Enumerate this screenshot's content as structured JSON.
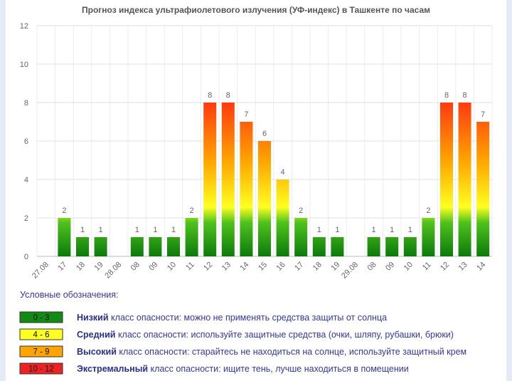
{
  "chart_data": {
    "type": "bar",
    "title": "Прогноз индекса ультрафиолетового излучения (УФ-индекс) в Ташкенте по часам",
    "categories": [
      "27.08",
      "17",
      "18",
      "19",
      "28.08",
      "08",
      "09",
      "10",
      "11",
      "12",
      "13",
      "14",
      "15",
      "16",
      "17",
      "18",
      "19",
      "29.08",
      "08",
      "09",
      "10",
      "11",
      "12",
      "13",
      "14"
    ],
    "values": [
      null,
      2,
      1,
      1,
      null,
      1,
      1,
      1,
      2,
      8,
      8,
      7,
      6,
      4,
      2,
      1,
      1,
      null,
      1,
      1,
      1,
      2,
      8,
      8,
      7
    ],
    "ylim": [
      0,
      12
    ],
    "yticks": [
      0,
      2,
      4,
      6,
      8,
      10,
      12
    ],
    "grid": true
  },
  "legend": {
    "title": "Условные обозначения:",
    "items": [
      {
        "range": "0 - 3",
        "color": "#138a13",
        "level": "Низкий",
        "text": "класс опасности: можно не применять средства защиты от солнца"
      },
      {
        "range": "4 - 6",
        "color": "#ffff22",
        "level": "Средний",
        "text": "класс опасности: используйте защитные средства (очки, шляпу, рубашки, брюки)"
      },
      {
        "range": "7 - 9",
        "color": "#ffa500",
        "level": "Высокий",
        "text": "класс опасности: старайтесь не находиться на солнце, используйте защитный крем"
      },
      {
        "range": "10 - 12",
        "color": "#ee2222",
        "level": "Экстремальный",
        "text": "класс опасности: ищите тень, лучше находиться в помещении"
      }
    ]
  }
}
